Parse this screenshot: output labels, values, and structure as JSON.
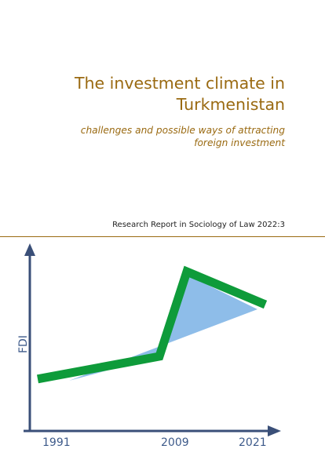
{
  "report": {
    "title_lines": [
      "The investment climate in",
      "Turkmenistan"
    ],
    "subtitle_lines": [
      "challenges and possible ways of attracting",
      "foreign investment"
    ],
    "series": "Research Report in Sociology of Law 2022:3"
  },
  "colors": {
    "title": "#9a6a12",
    "rule": "#9a6a12",
    "axis": "#3a4f78",
    "fdi_line": "#0e9b3a",
    "fdi_fill": "#8ebde9"
  },
  "chart_data": {
    "type": "line",
    "ylabel": "FDI",
    "xlabel": "",
    "x_ticks": [
      "1991",
      "2009",
      "2021"
    ],
    "series": [
      {
        "x": [
          "1991",
          "2009",
          "2021"
        ],
        "values": [
          0.05,
          0.25,
          0.8
        ]
      }
    ]
  }
}
